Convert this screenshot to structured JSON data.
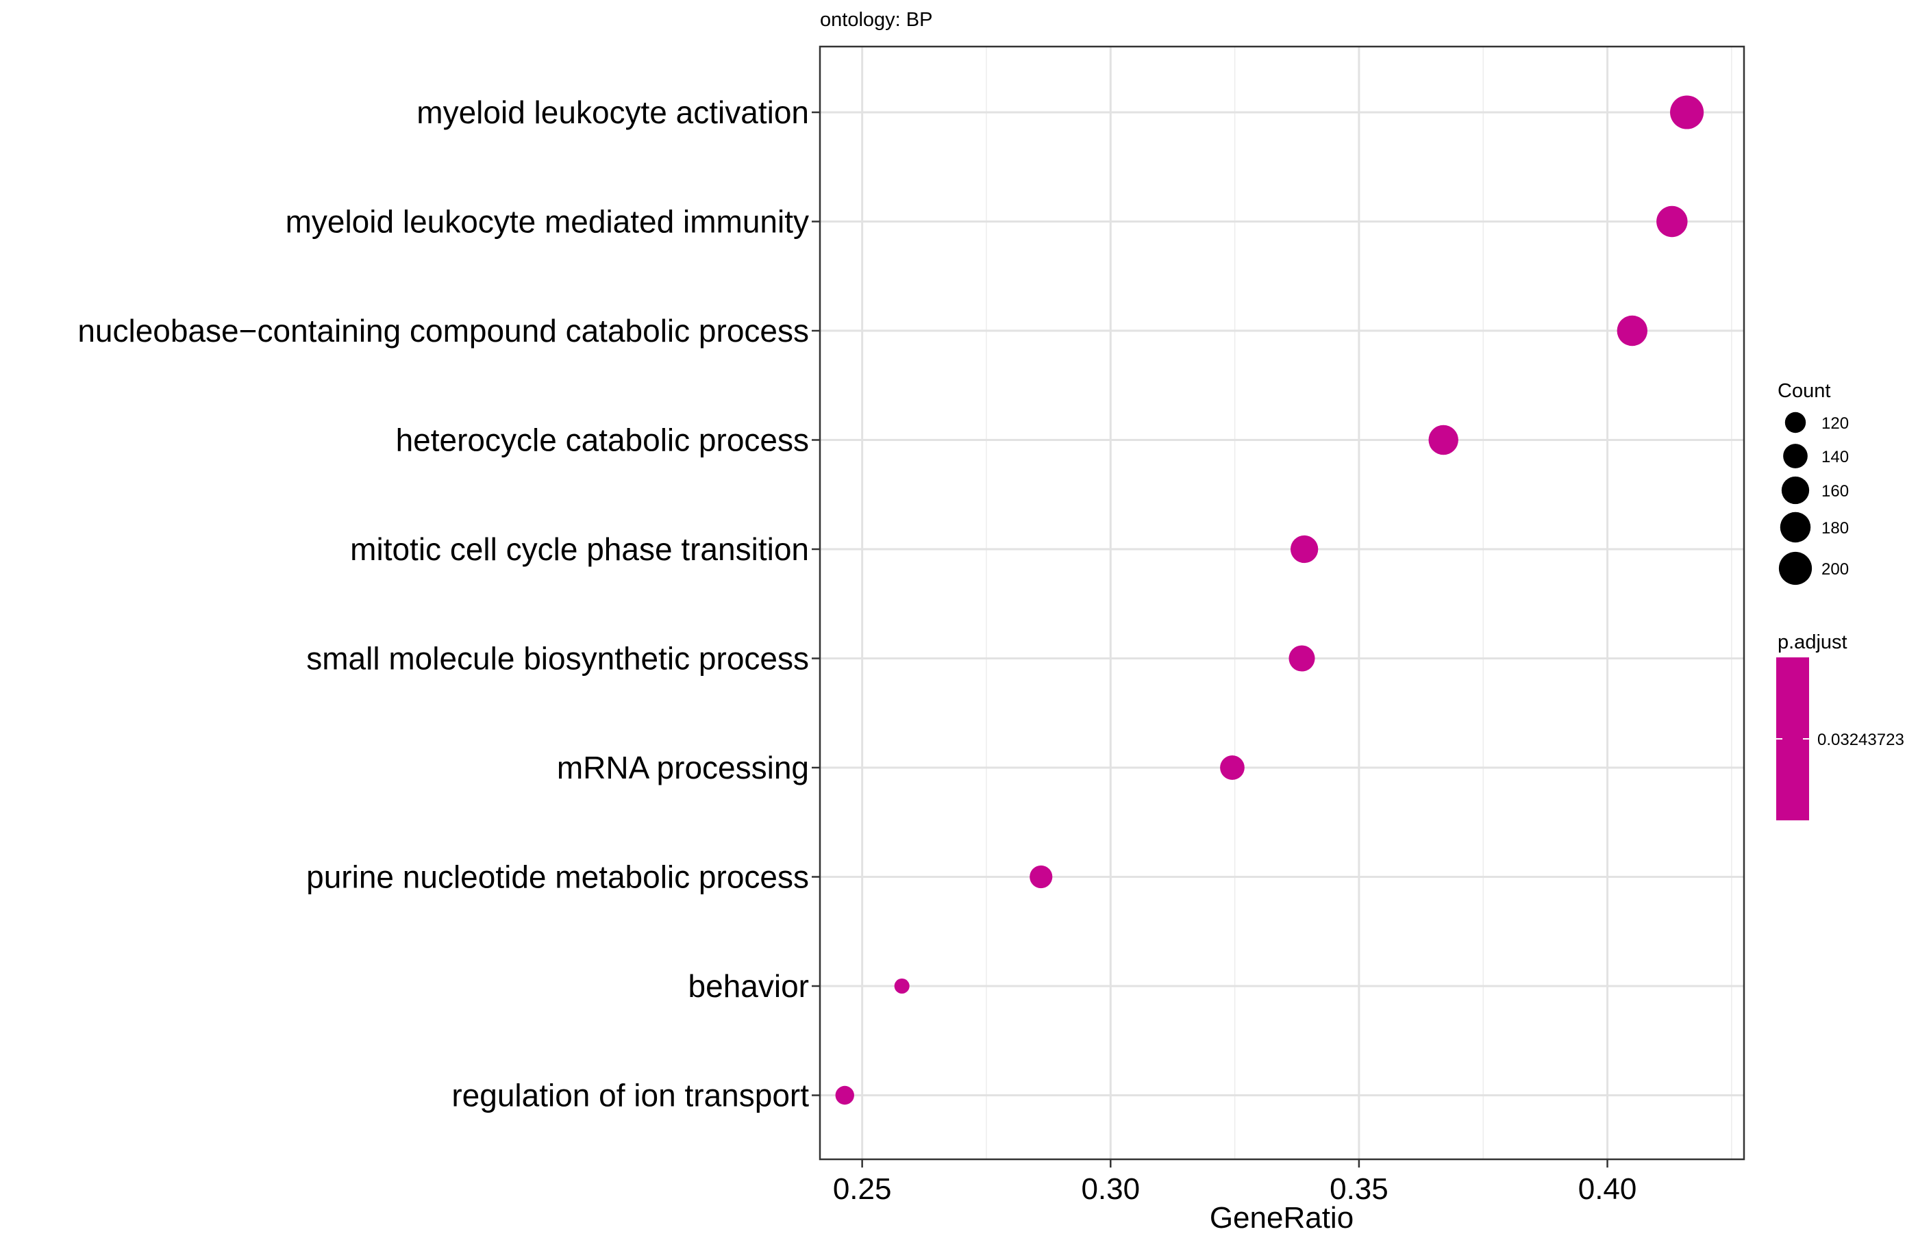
{
  "chart_data": {
    "type": "scatter",
    "title": "ontology: BP",
    "xlabel": "GeneRatio",
    "ylabel": "",
    "xlim": [
      0.2415,
      0.4275
    ],
    "x_ticks": [
      0.25,
      0.3,
      0.35,
      0.4
    ],
    "x_tick_labels": [
      "0.25",
      "0.30",
      "0.35",
      "0.40"
    ],
    "grid": true,
    "categories": [
      "myeloid leukocyte activation",
      "myeloid leukocyte mediated immunity",
      "nucleobase−containing compound catabolic process",
      "heterocycle catabolic process",
      "mitotic cell cycle phase transition",
      "small molecule biosynthetic process",
      "mRNA processing",
      "purine nucleotide metabolic process",
      "behavior",
      "regulation of ion transport"
    ],
    "x": [
      0.416,
      0.413,
      0.405,
      0.367,
      0.339,
      0.3385,
      0.3245,
      0.286,
      0.258,
      0.2465
    ],
    "count": [
      205,
      185,
      180,
      175,
      160,
      150,
      140,
      130,
      95,
      110
    ],
    "color": "#C7048F",
    "legend_position": "right",
    "size_legend": {
      "title": "Count",
      "values": [
        120,
        140,
        160,
        180,
        200
      ],
      "labels": [
        "120",
        "140",
        "160",
        "180",
        "200"
      ]
    },
    "color_legend": {
      "title": "p.adjust",
      "labels": [
        "0.03243723"
      ],
      "color": "#C7048F"
    }
  }
}
